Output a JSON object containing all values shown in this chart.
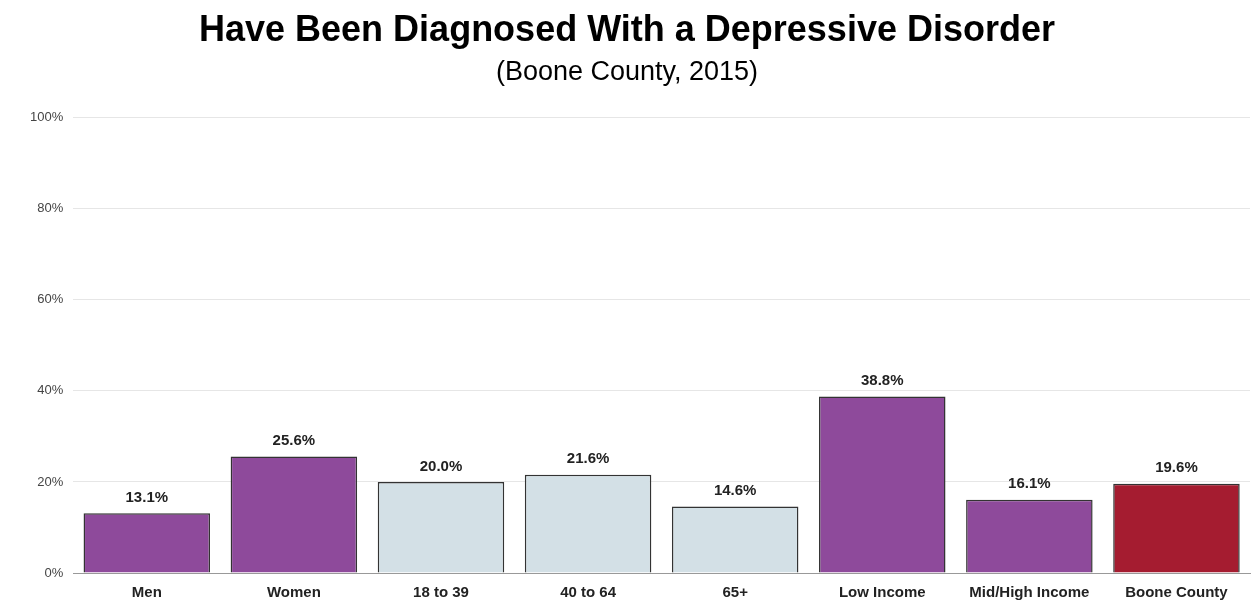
{
  "chart_data": {
    "type": "bar",
    "title": "Have Been Diagnosed With a Depressive Disorder",
    "subtitle": "(Boone County, 2015)",
    "categories": [
      "Men",
      "Women",
      "18 to 39",
      "40 to 64",
      "65+",
      "Low Income",
      "Mid/High Income",
      "Boone County"
    ],
    "values": [
      13.1,
      25.6,
      20.0,
      21.6,
      14.6,
      38.8,
      16.1,
      19.6
    ],
    "colors": [
      "#8e4a9b",
      "#8e4a9b",
      "#d3e0e6",
      "#d3e0e6",
      "#d3e0e6",
      "#8e4a9b",
      "#8e4a9b",
      "#a51c30"
    ],
    "value_labels": [
      "13.1%",
      "25.6%",
      "20.0%",
      "21.6%",
      "14.6%",
      "38.8%",
      "16.1%",
      "19.6%"
    ],
    "ylim": [
      0,
      100
    ],
    "yticks": [
      {
        "value": 0,
        "label": "0%"
      },
      {
        "value": 20,
        "label": "20%"
      },
      {
        "value": 40,
        "label": "40%"
      },
      {
        "value": 60,
        "label": "60%"
      },
      {
        "value": 80,
        "label": "80%"
      },
      {
        "value": 100,
        "label": "100%"
      }
    ],
    "grid": "y",
    "legend": false
  }
}
